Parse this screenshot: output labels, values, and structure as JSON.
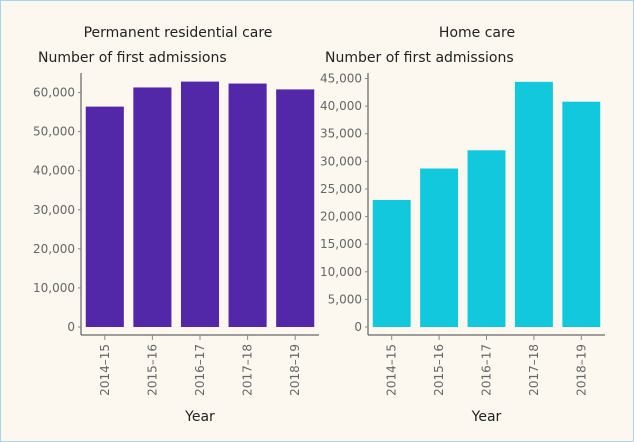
{
  "chart_data": [
    {
      "type": "bar",
      "title": "Permanent residential care",
      "y_label": "Number of first admissions",
      "x_label": "Year",
      "categories": [
        "2014–15",
        "2015–16",
        "2016–17",
        "2017–18",
        "2018–19"
      ],
      "values": [
        56400,
        61300,
        62800,
        62300,
        60800
      ],
      "color": "#5227a8",
      "ylim": [
        0,
        65000
      ],
      "yticks": [
        0,
        {
          "value": 10000,
          "label": "10,000"
        },
        {
          "value": 20000,
          "label": "20,000"
        },
        {
          "value": 30000,
          "label": "30,000"
        },
        {
          "value": 40000,
          "label": "40,000"
        },
        {
          "value": 50000,
          "label": "50,000"
        },
        {
          "value": 60000,
          "label": "60,000"
        }
      ]
    },
    {
      "type": "bar",
      "title": "Home care",
      "y_label": "Number of first admissions",
      "x_label": "Year",
      "categories": [
        "2014–15",
        "2015–16",
        "2016–17",
        "2017–18",
        "2018–19"
      ],
      "values": [
        23000,
        28700,
        32000,
        44400,
        40800
      ],
      "color": "#12c8dc",
      "ylim": [
        0,
        46000
      ],
      "yticks": [
        0,
        {
          "value": 5000,
          "label": "5,000"
        },
        {
          "value": 10000,
          "label": "10,000"
        },
        {
          "value": 15000,
          "label": "15,000"
        },
        {
          "value": 20000,
          "label": "20,000"
        },
        {
          "value": 25000,
          "label": "25,000"
        },
        {
          "value": 30000,
          "label": "30,000"
        },
        {
          "value": 35000,
          "label": "35,000"
        },
        {
          "value": 40000,
          "label": "40,000"
        },
        {
          "value": 45000,
          "label": "45,000"
        }
      ]
    }
  ]
}
